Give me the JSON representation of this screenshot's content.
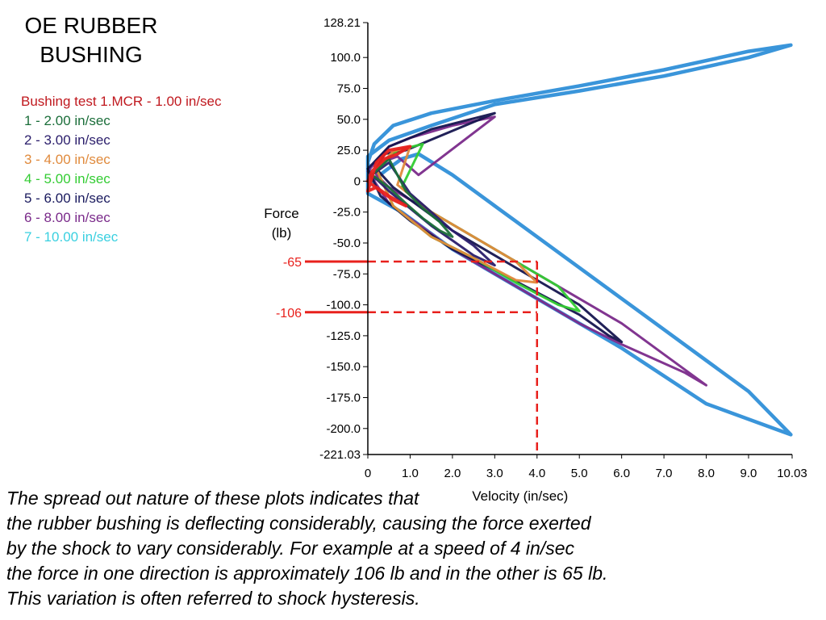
{
  "title": {
    "line1": "OE RUBBER",
    "line2": "BUSHING"
  },
  "legend": {
    "header": "Bushing test 1.MCR - 1.00 in/sec",
    "header_color": "#c0181e",
    "items": [
      {
        "label": "1 - 2.00 in/sec",
        "color": "#1b6e3a"
      },
      {
        "label": "2 - 3.00 in/sec",
        "color": "#2a1d6b"
      },
      {
        "label": "3 - 4.00 in/sec",
        "color": "#e08a3c"
      },
      {
        "label": "4 - 5.00 in/sec",
        "color": "#33cc33"
      },
      {
        "label": "5 - 6.00 in/sec",
        "color": "#1a1a5e"
      },
      {
        "label": "6 - 8.00 in/sec",
        "color": "#7a2a8a"
      },
      {
        "label": "7 - 10.00 in/sec",
        "color": "#3ad0e0"
      }
    ]
  },
  "chart_data": {
    "type": "line",
    "title": "",
    "xlabel": "Velocity (in/sec)",
    "ylabel": "Force (lb)",
    "xlim": [
      0,
      10.03
    ],
    "ylim": [
      -221.03,
      128.21
    ],
    "x_ticks": [
      {
        "value": 0,
        "label": "0"
      },
      {
        "value": 1,
        "label": "1.0"
      },
      {
        "value": 2,
        "label": "2.0"
      },
      {
        "value": 3,
        "label": "3.0"
      },
      {
        "value": 4,
        "label": "4.0"
      },
      {
        "value": 5,
        "label": "5.0"
      },
      {
        "value": 6,
        "label": "6.0"
      },
      {
        "value": 7,
        "label": "7.0"
      },
      {
        "value": 8,
        "label": "8.0"
      },
      {
        "value": 9,
        "label": "9.0"
      },
      {
        "value": 10.03,
        "label": "10.03"
      }
    ],
    "y_ticks": [
      {
        "value": 128.21,
        "label": "128.21"
      },
      {
        "value": 100,
        "label": "100.0"
      },
      {
        "value": 75,
        "label": "75.0"
      },
      {
        "value": 50,
        "label": "50.0"
      },
      {
        "value": 25,
        "label": "25.0"
      },
      {
        "value": 0,
        "label": "0"
      },
      {
        "value": -25,
        "label": "-25.0"
      },
      {
        "value": -50,
        "label": "-50.0"
      },
      {
        "value": -75,
        "label": "-75.0"
      },
      {
        "value": -100,
        "label": "-100.0"
      },
      {
        "value": -125,
        "label": "-125.0"
      },
      {
        "value": -150,
        "label": "-150.0"
      },
      {
        "value": -175,
        "label": "-175.0"
      },
      {
        "value": -200,
        "label": "-200.0"
      },
      {
        "value": -221.03,
        "label": "-221.03"
      }
    ],
    "series": [
      {
        "name": "7 - 10.00 in/sec",
        "color": "#2f8fd8",
        "width": 4.5,
        "x": [
          0,
          0.5,
          1.5,
          3,
          5,
          7,
          9,
          10,
          9,
          7,
          5,
          3,
          1.5,
          0.6,
          0.15,
          0,
          0.1,
          0.4,
          0.8,
          1.2,
          2,
          3,
          4,
          5,
          6,
          7,
          8,
          9,
          10,
          9.6,
          8,
          6,
          4,
          2,
          0.8,
          0,
          0
        ],
        "y": [
          20,
          33,
          45,
          62,
          73,
          85,
          100,
          110,
          105,
          90,
          77,
          65,
          55,
          45,
          30,
          15,
          0,
          8,
          18,
          22,
          5,
          -20,
          -45,
          -70,
          -95,
          -120,
          -145,
          -170,
          -205,
          -200,
          -180,
          -135,
          -95,
          -55,
          -25,
          -10,
          20
        ]
      },
      {
        "name": "6 - 8.00 in/sec",
        "color": "#7a2a8a",
        "width": 3,
        "x": [
          0,
          0.5,
          1,
          2,
          3,
          1.2,
          0.7,
          0.3,
          0.2,
          0.5,
          1,
          2,
          3,
          4,
          5,
          6,
          7,
          8,
          7.5,
          6,
          5,
          4,
          3,
          2,
          1.2,
          0.5,
          0
        ],
        "y": [
          8,
          28,
          35,
          45,
          52,
          5,
          20,
          15,
          5,
          -5,
          -15,
          -35,
          -55,
          -75,
          -95,
          -115,
          -140,
          -165,
          -155,
          -132,
          -115,
          -95,
          -75,
          -55,
          -35,
          -18,
          8
        ]
      },
      {
        "name": "5 - 6.00 in/sec",
        "color": "#15154f",
        "width": 3,
        "x": [
          0,
          0.5,
          1.5,
          3,
          0.9,
          0.4,
          0.2,
          0.6,
          1,
          2,
          3,
          4,
          5,
          6,
          5.7,
          5,
          4,
          3,
          2,
          1,
          0.3,
          0
        ],
        "y": [
          10,
          28,
          42,
          55,
          25,
          22,
          10,
          -5,
          -15,
          -40,
          -60,
          -80,
          -100,
          -130,
          -125,
          -108,
          -90,
          -72,
          -55,
          -32,
          -12,
          10
        ]
      },
      {
        "name": "4 - 5.00 in/sec",
        "color": "#33cc33",
        "width": 3,
        "x": [
          0.2,
          0.7,
          1.3,
          0.8,
          1.5,
          2.5,
          3.5,
          4.5,
          5,
          4.5,
          3.5,
          2.5,
          1.5,
          0.6,
          0.2
        ],
        "y": [
          10,
          25,
          30,
          -5,
          -25,
          -45,
          -65,
          -85,
          -105,
          -100,
          -82,
          -62,
          -45,
          -20,
          10
        ]
      },
      {
        "name": "3 - 4.00 in/sec",
        "color": "#e08a3c",
        "width": 3,
        "x": [
          0.2,
          0.6,
          1,
          0.7,
          1.5,
          2.5,
          3.5,
          4,
          3.5,
          2.5,
          1.5,
          0.6,
          0.2
        ],
        "y": [
          10,
          24,
          28,
          -3,
          -25,
          -45,
          -65,
          -82,
          -80,
          -62,
          -45,
          -20,
          10
        ]
      },
      {
        "name": "2 - 3.00 in/sec",
        "color": "#2a1d6b",
        "width": 3,
        "x": [
          0.1,
          0.5,
          1,
          1.5,
          2,
          2.5,
          3,
          2.5,
          2,
          1.5,
          1,
          0.5,
          0.1
        ],
        "y": [
          5,
          15,
          -10,
          -25,
          -40,
          -52,
          -68,
          -60,
          -48,
          -36,
          -22,
          -8,
          5
        ]
      },
      {
        "name": "1 - 2.00 in/sec",
        "color": "#1b6e3a",
        "width": 3,
        "x": [
          0.1,
          0.5,
          0.9,
          1.3,
          1.7,
          2,
          1.7,
          1.3,
          0.9,
          0.5,
          0.1
        ],
        "y": [
          5,
          18,
          -8,
          -22,
          -33,
          -45,
          -40,
          -30,
          -18,
          -5,
          5
        ]
      },
      {
        "name": "Bushing test 1.MCR - 1.00 in/sec",
        "color": "#e8201c",
        "width": 4,
        "x": [
          0,
          0.2,
          0.5,
          1,
          0.7,
          0.4,
          0.1,
          0,
          0.3,
          0.6,
          0.9,
          0.5,
          0.2,
          0
        ],
        "y": [
          -8,
          15,
          25,
          28,
          22,
          18,
          8,
          0,
          -8,
          -15,
          -20,
          -12,
          -5,
          -8
        ]
      }
    ],
    "annotations": [
      {
        "label": "-65",
        "value": -65,
        "color": "#e8201c"
      },
      {
        "label": "-106",
        "value": -106,
        "color": "#e8201c"
      },
      {
        "label": "4.0",
        "value": 4,
        "color": "#e8201c"
      }
    ]
  },
  "caption": {
    "lines": [
      "The spread out nature of these plots indicates that",
      "the rubber bushing is deflecting considerably, causing the force exerted",
      "by the shock to vary considerably.  For example at a speed of 4 in/sec",
      "the force in one direction is approximately 106 lb and in the other is 65 lb.",
      "This variation is often referred to shock hysteresis."
    ]
  }
}
